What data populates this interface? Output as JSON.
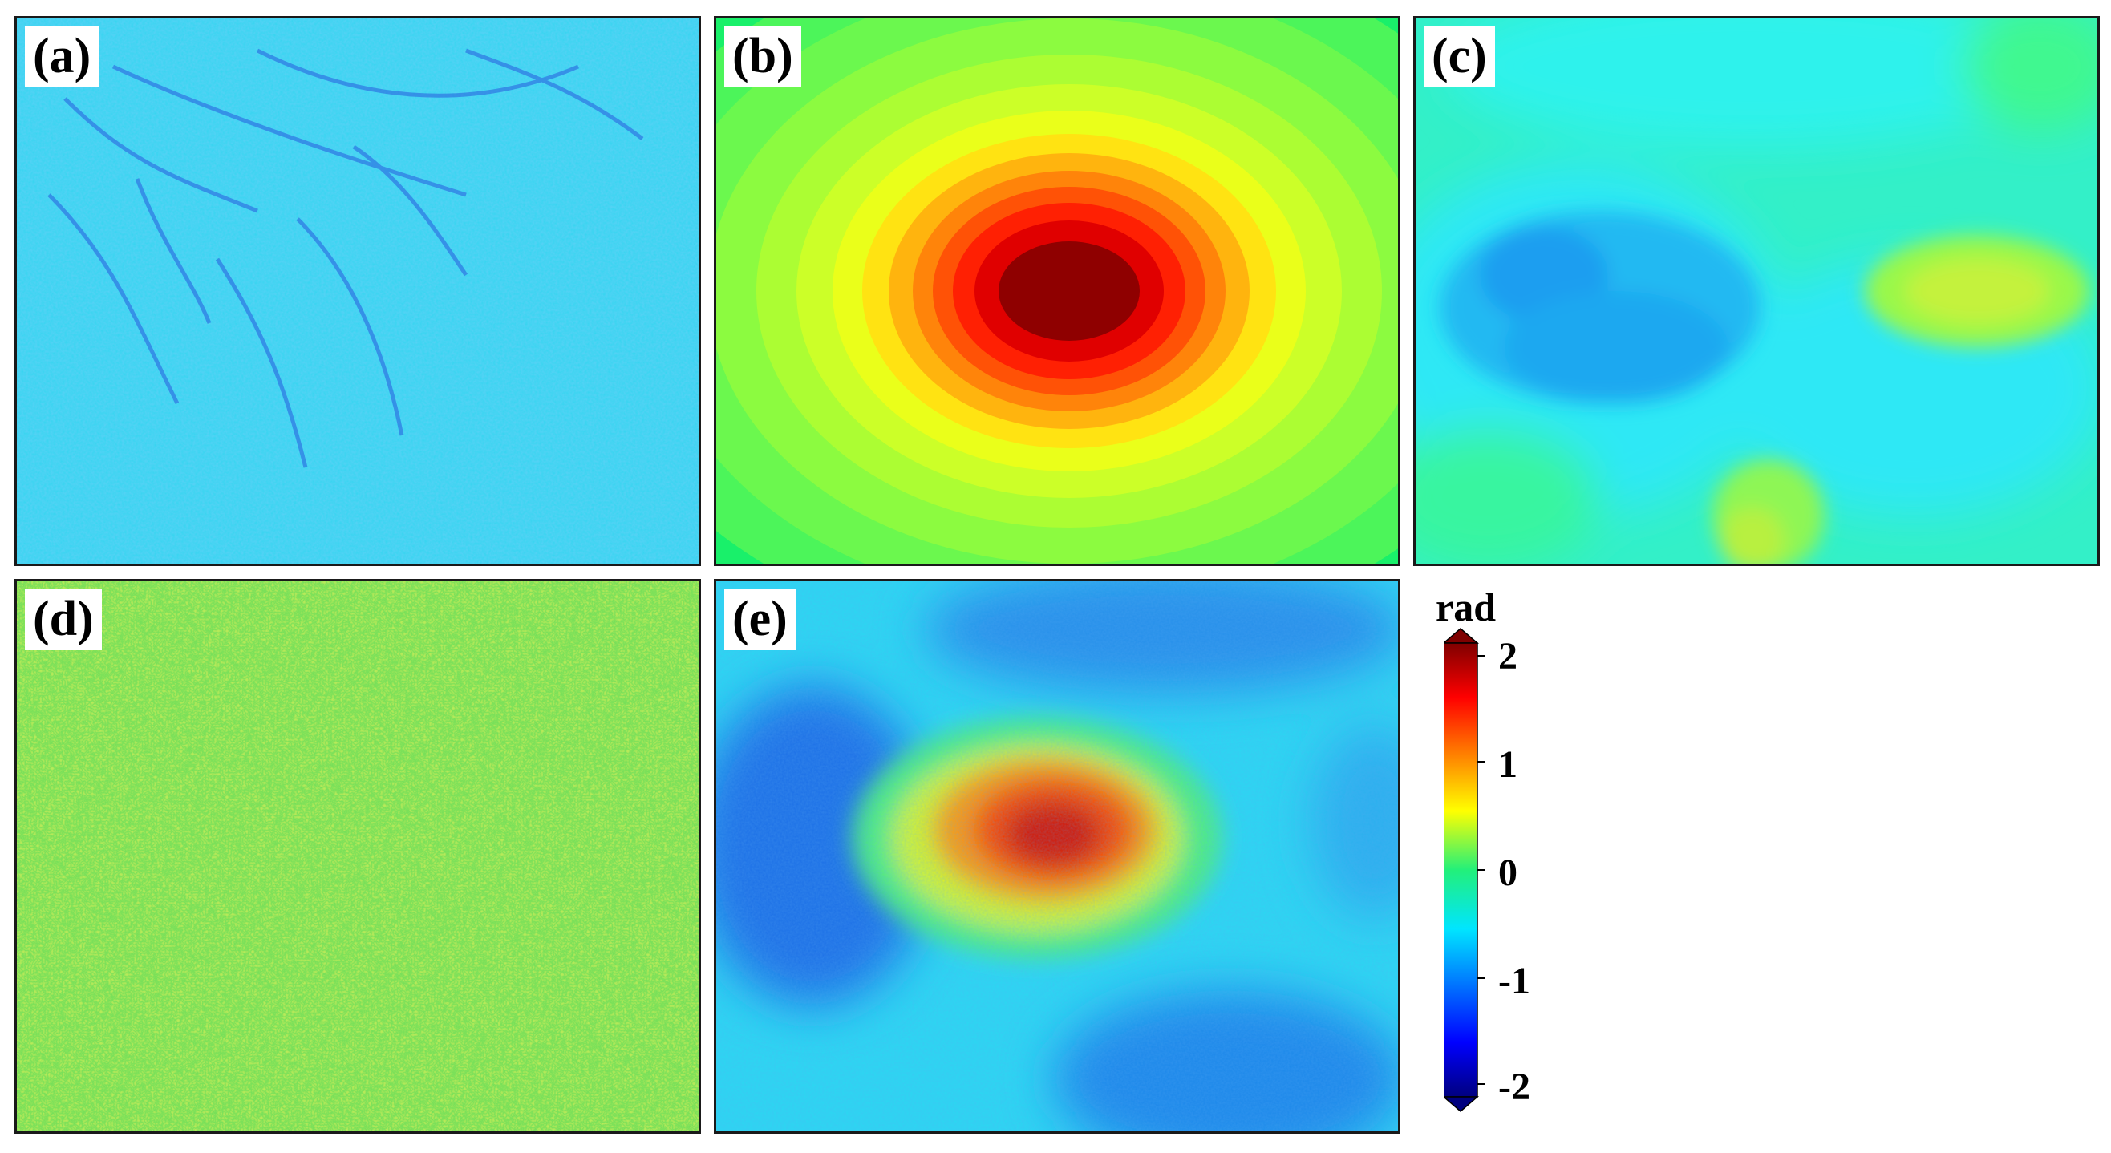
{
  "panels": [
    {
      "id": "a",
      "label": "(a)"
    },
    {
      "id": "b",
      "label": "(b)"
    },
    {
      "id": "c",
      "label": "(c)"
    },
    {
      "id": "d",
      "label": "(d)"
    },
    {
      "id": "e",
      "label": "(e)"
    }
  ],
  "colorbar": {
    "unit": "rad",
    "ticks": [
      "2",
      "1",
      "0",
      "-1",
      "-2"
    ],
    "range": [
      -2,
      2
    ],
    "colormap": "jet"
  }
}
